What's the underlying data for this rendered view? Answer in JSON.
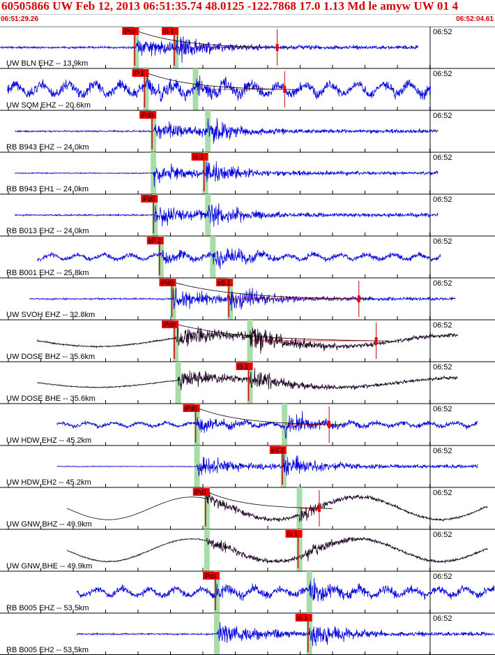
{
  "header": {
    "title": "60505866 UW Feb 12, 2013 06:51:35.74   48.0125 -122.7868 17.0 1.13 Md le amyw UW 01   4",
    "start_time": "06:51:29.26",
    "end_time": "06:52:04.61"
  },
  "colors": {
    "header_text": "#d40000",
    "trace_blue": "#0000dd",
    "trace_dark": "#1a0020",
    "pick_flag": "#ee0000",
    "pick_window": "#a8dca8",
    "grid": "#000000"
  },
  "tick_label": "06:52",
  "traces": [
    {
      "label": "UW BLN EHZ -- 13.9km",
      "color": "blue",
      "style": "burst",
      "amp": 0.45,
      "noise": 0.04,
      "start": 0.0,
      "end": 0.845,
      "p": 0.275,
      "s": 0.355,
      "ppick": "iPc0",
      "spick": "iS 1",
      "decay": true,
      "coda": 0.56
    },
    {
      "label": "UW SQM EHZ -- 20.6km",
      "color": "blue",
      "style": "noisy",
      "amp": 0.45,
      "noise": 0.2,
      "start": 0.015,
      "end": 0.87,
      "p": 0.295,
      "s": 0.395,
      "ppick": "iP 1",
      "spick": "",
      "decay": true,
      "coda": 0.575
    },
    {
      "label": "RB B943 EHZ -- 24.0km",
      "color": "blue",
      "style": "burst",
      "amp": 0.45,
      "noise": 0.03,
      "start": 0.03,
      "end": 0.885,
      "p": 0.31,
      "s": 0.42,
      "ppick": "iPd0",
      "spick": "",
      "decay": false,
      "coda": 0
    },
    {
      "label": "RB B943 EH1 -- 24.0km",
      "color": "blue",
      "style": "burst",
      "amp": 0.45,
      "noise": 0.02,
      "start": 0.03,
      "end": 0.885,
      "p": 0.31,
      "s": 0.415,
      "ppick": "",
      "spick": "iS 1",
      "decay": false,
      "coda": 0
    },
    {
      "label": "RB B013 EHZ -- 24.0km",
      "color": "blue",
      "style": "burst",
      "amp": 0.45,
      "noise": 0.03,
      "start": 0.03,
      "end": 0.885,
      "p": 0.313,
      "s": 0.42,
      "ppick": "iPd0",
      "spick": "",
      "decay": false,
      "coda": 0
    },
    {
      "label": "RB B001 EHZ -- 25.8km",
      "color": "blue",
      "style": "noisy",
      "amp": 0.4,
      "noise": 0.09,
      "start": 0.075,
      "end": 0.89,
      "p": 0.325,
      "s": 0.43,
      "ppick": "eP 2",
      "spick": "",
      "decay": false,
      "coda": 0
    },
    {
      "label": "UW SVOH EHZ -- 32.8km",
      "color": "blue",
      "style": "burst",
      "amp": 0.45,
      "noise": 0.03,
      "start": 0.06,
      "end": 0.92,
      "p": 0.35,
      "s": 0.465,
      "ppick": "iPd0",
      "spick": "eS 1",
      "decay": true,
      "coda": 0.725
    },
    {
      "label": "UW DOSE BHZ -- 35.6km",
      "color": "dark",
      "style": "long",
      "amp": 0.55,
      "noise": 0.03,
      "start": 0.075,
      "end": 0.925,
      "p": 0.355,
      "s": 0.505,
      "ppick": "iPd0",
      "spick": "",
      "decay": true,
      "coda": 0.76
    },
    {
      "label": "UW DOSE BHE -- 35.6km",
      "color": "dark",
      "style": "long",
      "amp": 0.45,
      "noise": 0.02,
      "start": 0.075,
      "end": 0.925,
      "p": 0.36,
      "s": 0.505,
      "ppick": "",
      "spick": "iS 1",
      "decay": false,
      "coda": 0
    },
    {
      "label": "UW HDW EHZ -- 45.2km",
      "color": "blue",
      "style": "noisy",
      "amp": 0.45,
      "noise": 0.07,
      "start": 0.115,
      "end": 0.965,
      "p": 0.398,
      "s": 0.575,
      "ppick": "iPd0",
      "spick": "",
      "decay": true,
      "coda": 0.665
    },
    {
      "label": "UW HDW EH2 -- 45.2km",
      "color": "blue",
      "style": "burst",
      "amp": 0.45,
      "noise": 0.015,
      "start": 0.115,
      "end": 0.965,
      "p": 0.398,
      "s": 0.573,
      "ppick": "",
      "spick": "eS 2",
      "decay": false,
      "coda": 0
    },
    {
      "label": "UW GNW BHZ -- 49.9km",
      "color": "dark",
      "style": "wave",
      "amp": 0.3,
      "noise": 0.0,
      "start": 0.135,
      "end": 0.985,
      "p": 0.418,
      "s": 0.605,
      "ppick": "iPd1",
      "spick": "",
      "decay": true,
      "coda": 0.645
    },
    {
      "label": "UW GNW BHE -- 49.9km",
      "color": "dark",
      "style": "wave2",
      "amp": 0.3,
      "noise": 0.04,
      "start": 0.135,
      "end": 0.985,
      "p": 0.418,
      "s": 0.605,
      "ppick": "",
      "spick": "iS 1",
      "decay": false,
      "coda": 0
    },
    {
      "label": "RB B005 EHZ -- 53.5km",
      "color": "blue",
      "style": "noisy",
      "amp": 0.45,
      "noise": 0.13,
      "start": 0.155,
      "end": 1.0,
      "p": 0.438,
      "s": 0.625,
      "ppick": "iPd1",
      "spick": "",
      "decay": false,
      "coda": 0
    },
    {
      "label": "RB B005 EH2 -- 53.5km",
      "color": "blue",
      "style": "burst",
      "amp": 0.5,
      "noise": 0.03,
      "start": 0.155,
      "end": 1.0,
      "p": 0.438,
      "s": 0.625,
      "ppick": "",
      "spick": "iS 1",
      "decay": false,
      "coda": 0
    }
  ]
}
